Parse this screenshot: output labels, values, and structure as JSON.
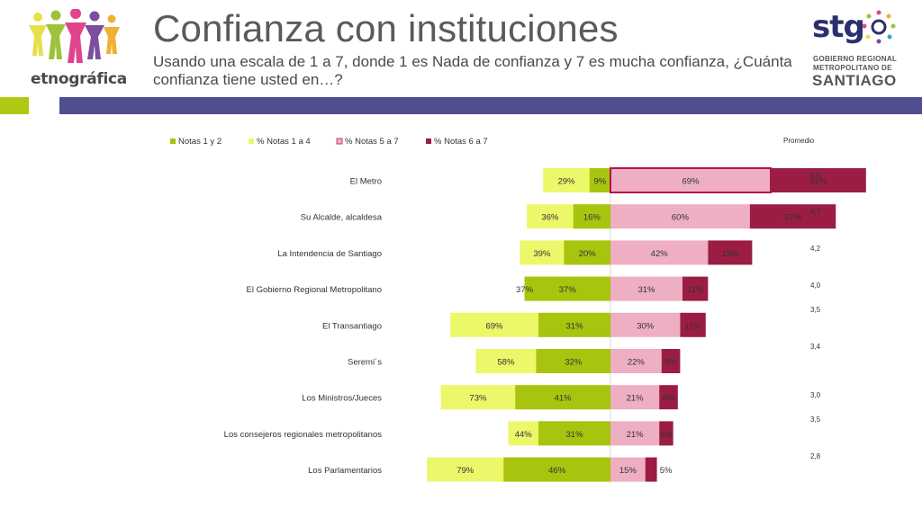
{
  "header": {
    "brand": "etnográfica",
    "title": "Confianza con instituciones",
    "subtitle": "Usando una escala de 1 a 7, donde 1 es Nada de confianza y 7 es mucha confianza, ¿Cuánta confianza tiene usted en…?"
  },
  "logo_right": {
    "stg": "stg",
    "line1": "GOBIERNO REGIONAL",
    "line2": "METROPOLITANO DE",
    "line3": "SANTIAGO"
  },
  "colors": {
    "notas_1_2": "#a8c40f",
    "notas_1_4": "#edf76a",
    "notas_5_7": "#eeafc2",
    "notas_6_7": "#9b1d44",
    "band_green": "#b0c813",
    "band_blue": "#4f4f8f"
  },
  "chart_data": {
    "type": "bar",
    "orientation": "horizontal-diverging",
    "categories": [
      "El Metro",
      "Su Alcalde, alcaldesa",
      "La Intendencia de Santiago",
      "El Gobierno Regional Metropolitano",
      "El Transantiago",
      "Seremi´s",
      "Los Ministros/Jueces",
      "Los consejeros regionales metropolitanos",
      "Los Parlamentarios"
    ],
    "series": [
      {
        "name": "Notas 1 y 2",
        "values": [
          9,
          16,
          20,
          37,
          31,
          32,
          41,
          31,
          46
        ],
        "labels": [
          "9%",
          "16%",
          "20%",
          "37%",
          "31%",
          "32%",
          "41%",
          "31%",
          "46%"
        ]
      },
      {
        "name": "% Notas 1 a 4",
        "values": [
          29,
          36,
          39,
          37,
          69,
          58,
          73,
          44,
          79
        ],
        "labels": [
          "29%",
          "36%",
          "39%",
          "37%",
          "69%",
          "58%",
          "73%",
          "44%",
          "79%"
        ]
      },
      {
        "name": "% Notas 5 a 7",
        "values": [
          69,
          60,
          42,
          31,
          30,
          22,
          21,
          21,
          15
        ],
        "labels": [
          "69%",
          "60%",
          "42%",
          "31%",
          "30%",
          "22%",
          "21%",
          "21%",
          "15%"
        ]
      },
      {
        "name": "% Notas 6 a 7",
        "values": [
          41,
          37,
          19,
          11,
          11,
          8,
          8,
          6,
          5
        ],
        "labels": [
          "41%",
          "37%",
          "19%",
          "11%",
          "11%",
          "8%",
          "8%",
          "6%",
          "5%"
        ]
      }
    ],
    "promedio_header": "Promedio",
    "promedio": [
      "5,0",
      "4,7",
      "4,2",
      "4,0",
      "3,5",
      "3,4",
      "3,0",
      "3,5",
      "2,8"
    ],
    "legend_position": "top",
    "highlighted_category": "El Metro",
    "grid": false
  }
}
